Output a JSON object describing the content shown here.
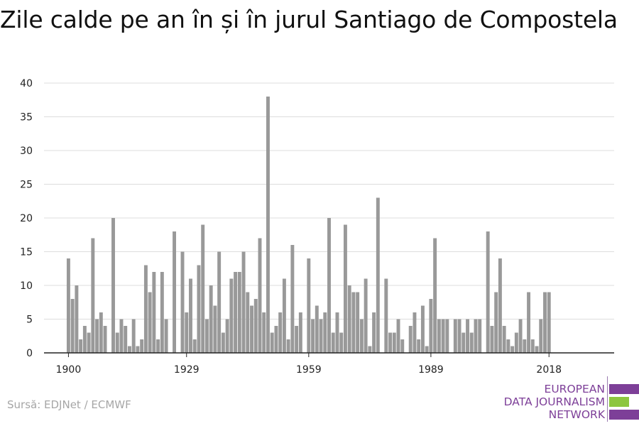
{
  "title": "Zile calde pe an în și în jurul Santiago de Compostela",
  "source": "Sursă: EDJNet / ECMWF",
  "logo": {
    "line1": "EUROPEAN",
    "line2": "DATA JOURNALISM",
    "line3": "NETWORK",
    "colors": [
      "#7d3f98",
      "#8dc63f",
      "#7d3f98"
    ]
  },
  "colors": {
    "bar": "#999999",
    "grid": "#dddddd",
    "axis": "#222222",
    "tick_text": "#222222"
  },
  "chart_data": {
    "type": "bar",
    "title": "Zile calde pe an în și în jurul Santiago de Compostela",
    "xlabel": "",
    "ylabel": "",
    "ylim": [
      0,
      40
    ],
    "yticks": [
      0,
      5,
      10,
      15,
      20,
      25,
      30,
      35,
      40
    ],
    "xticks": [
      1900,
      1929,
      1959,
      1989,
      2018
    ],
    "xlim": [
      1894,
      2034
    ],
    "grid": true,
    "x": [
      1900,
      1901,
      1902,
      1903,
      1904,
      1905,
      1906,
      1907,
      1908,
      1909,
      1910,
      1911,
      1912,
      1913,
      1914,
      1915,
      1916,
      1917,
      1918,
      1919,
      1920,
      1921,
      1922,
      1923,
      1924,
      1925,
      1926,
      1927,
      1928,
      1929,
      1930,
      1931,
      1932,
      1933,
      1934,
      1935,
      1936,
      1937,
      1938,
      1939,
      1940,
      1941,
      1942,
      1943,
      1944,
      1945,
      1946,
      1947,
      1948,
      1949,
      1950,
      1951,
      1952,
      1953,
      1954,
      1955,
      1956,
      1957,
      1958,
      1959,
      1960,
      1961,
      1962,
      1963,
      1964,
      1965,
      1966,
      1967,
      1968,
      1969,
      1970,
      1971,
      1972,
      1973,
      1974,
      1975,
      1976,
      1977,
      1978,
      1979,
      1980,
      1981,
      1982,
      1983,
      1984,
      1985,
      1986,
      1987,
      1988,
      1989,
      1990,
      1991,
      1992,
      1993,
      1994,
      1995,
      1996,
      1997,
      1998,
      1999,
      2000,
      2001,
      2002,
      2003,
      2004,
      2005,
      2006,
      2007,
      2008,
      2009,
      2010,
      2011,
      2012,
      2013,
      2014,
      2015,
      2016,
      2017,
      2018
    ],
    "values": [
      14,
      8,
      10,
      2,
      4,
      3,
      17,
      5,
      6,
      4,
      0,
      20,
      3,
      5,
      4,
      1,
      5,
      1,
      2,
      13,
      9,
      12,
      2,
      12,
      5,
      0,
      18,
      0,
      15,
      6,
      11,
      2,
      13,
      19,
      5,
      10,
      7,
      15,
      3,
      5,
      11,
      12,
      12,
      15,
      9,
      7,
      8,
      17,
      6,
      38,
      3,
      4,
      6,
      11,
      2,
      16,
      4,
      6,
      0,
      14,
      5,
      7,
      5,
      6,
      20,
      3,
      6,
      3,
      19,
      10,
      9,
      9,
      5,
      11,
      1,
      6,
      23,
      0,
      11,
      3,
      3,
      5,
      2,
      0,
      4,
      6,
      2,
      7,
      1,
      8,
      17,
      5,
      5,
      5,
      0,
      5,
      5,
      3,
      5,
      3,
      5,
      5,
      0,
      18,
      4,
      9,
      14,
      4,
      2,
      1,
      3,
      5,
      2,
      9,
      2,
      1,
      5,
      9,
      9
    ]
  }
}
